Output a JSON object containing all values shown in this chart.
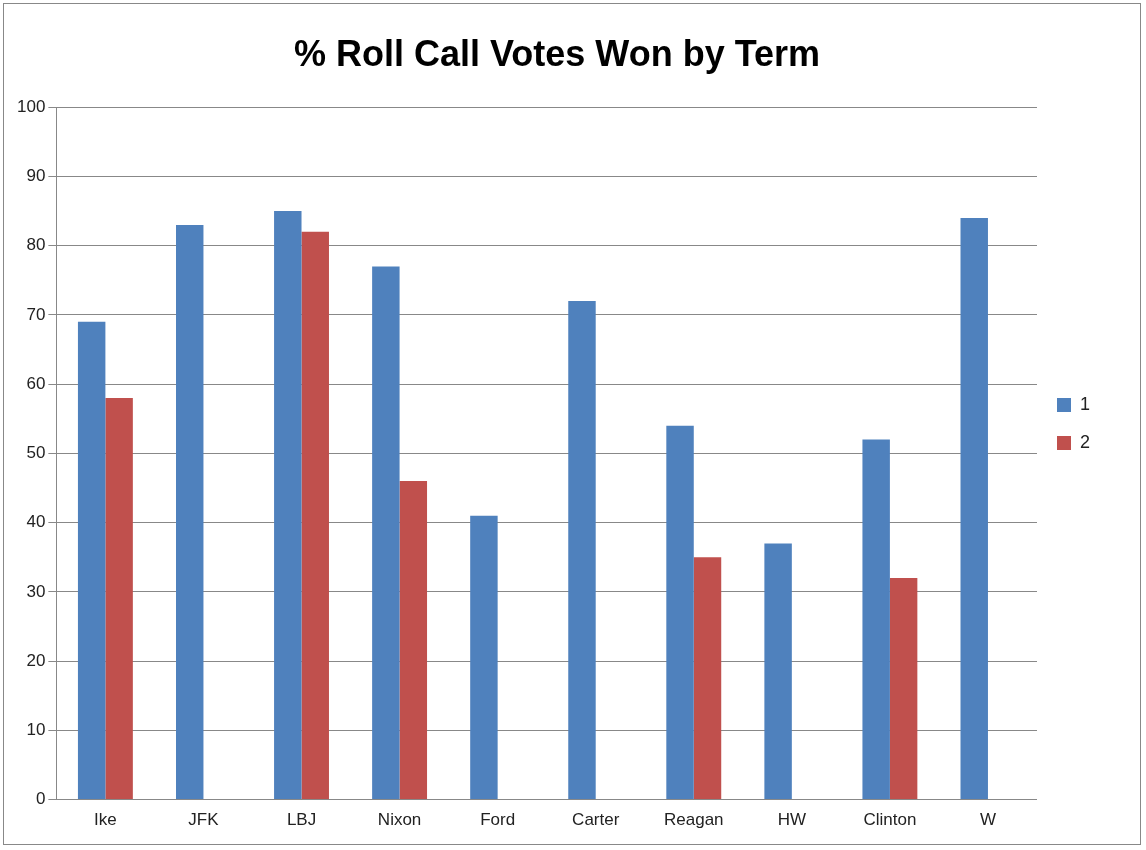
{
  "chart_data": {
    "type": "bar",
    "title": "% Roll Call Votes Won by Term",
    "categories": [
      "Ike",
      "JFK",
      "LBJ",
      "Nixon",
      "Ford",
      "Carter",
      "Reagan",
      "HW",
      "Clinton",
      "W"
    ],
    "series": [
      {
        "name": "1",
        "color": "#4f81bd",
        "values": [
          69,
          83,
          85,
          77,
          41,
          72,
          54,
          37,
          52,
          84
        ]
      },
      {
        "name": "2",
        "color": "#c0504d",
        "values": [
          58,
          null,
          82,
          46,
          null,
          null,
          35,
          null,
          32,
          null
        ]
      }
    ],
    "ylim": [
      0,
      100
    ],
    "yticks": [
      0,
      10,
      20,
      30,
      40,
      50,
      60,
      70,
      80,
      90,
      100
    ],
    "grid": "y",
    "legend": "right"
  }
}
